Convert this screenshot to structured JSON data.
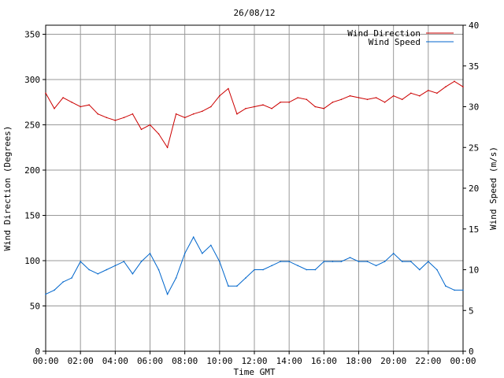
{
  "chart_data": {
    "type": "line",
    "title": "26/08/12",
    "xlabel": "Time GMT",
    "ylabel_left": "Wind Direction (Degrees)",
    "ylabel_right": "Wind Speed (m/s)",
    "x_tick_labels": [
      "00:00",
      "02:00",
      "04:00",
      "06:00",
      "08:00",
      "10:00",
      "12:00",
      "14:00",
      "16:00",
      "18:00",
      "20:00",
      "22:00",
      "00:00"
    ],
    "y_left_ticks": [
      0,
      50,
      100,
      150,
      200,
      250,
      300,
      350
    ],
    "y_right_ticks": [
      0,
      5,
      10,
      15,
      20,
      25,
      30,
      35,
      40
    ],
    "ylim_left": [
      0,
      360
    ],
    "ylim_right": [
      0,
      40
    ],
    "xlim_hours": [
      0,
      24
    ],
    "grid": true,
    "legend_position": "top-right",
    "series": [
      {
        "name": "Wind Direction",
        "axis": "left",
        "color": "#cc0000",
        "x_hours": [
          0,
          0.5,
          1,
          1.5,
          2,
          2.5,
          3,
          3.5,
          4,
          4.5,
          5,
          5.5,
          6,
          6.5,
          7,
          7.5,
          8,
          8.5,
          9,
          9.5,
          10,
          10.5,
          11,
          11.5,
          12,
          12.5,
          13,
          13.5,
          14,
          14.5,
          15,
          15.5,
          16,
          16.5,
          17,
          17.5,
          18,
          18.5,
          19,
          19.5,
          20,
          20.5,
          21,
          21.5,
          22,
          22.5,
          23,
          23.5,
          24
        ],
        "values": [
          285,
          268,
          280,
          275,
          270,
          272,
          262,
          258,
          255,
          258,
          262,
          245,
          250,
          240,
          225,
          262,
          258,
          262,
          265,
          270,
          282,
          290,
          262,
          268,
          270,
          272,
          268,
          275,
          275,
          280,
          278,
          270,
          268,
          275,
          278,
          282,
          280,
          278,
          280,
          275,
          282,
          278,
          285,
          282,
          288,
          285,
          292,
          298,
          292
        ]
      },
      {
        "name": "Wind Speed",
        "axis": "right",
        "color": "#0066cc",
        "x_hours": [
          0,
          0.5,
          1,
          1.5,
          2,
          2.5,
          3,
          3.5,
          4,
          4.5,
          5,
          5.5,
          6,
          6.5,
          7,
          7.5,
          8,
          8.5,
          9,
          9.5,
          10,
          10.5,
          11,
          11.5,
          12,
          12.5,
          13,
          13.5,
          14,
          14.5,
          15,
          15.5,
          16,
          16.5,
          17,
          17.5,
          18,
          18.5,
          19,
          19.5,
          20,
          20.5,
          21,
          21.5,
          22,
          22.5,
          23,
          23.5,
          24
        ],
        "values": [
          7,
          7.5,
          8.5,
          9,
          11,
          10,
          9.5,
          10,
          10.5,
          11,
          9.5,
          11,
          12,
          10,
          7,
          9,
          12,
          14,
          12,
          13,
          11,
          8,
          8,
          9,
          10,
          10,
          10.5,
          11,
          11,
          10.5,
          10,
          10,
          11,
          11,
          11,
          11.5,
          11,
          11,
          10.5,
          11,
          12,
          11,
          11,
          10,
          11,
          10,
          8,
          7.5,
          7.5
        ]
      }
    ]
  }
}
